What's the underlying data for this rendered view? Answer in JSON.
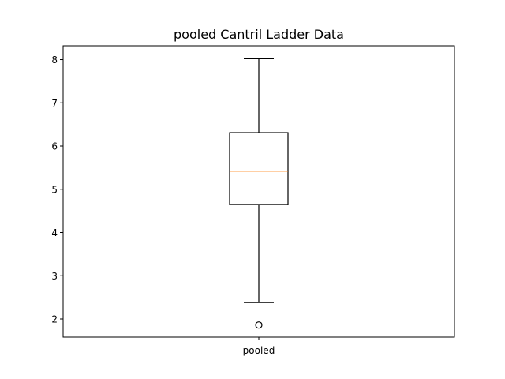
{
  "chart_data": {
    "type": "box",
    "title": "pooled Cantril Ladder Data",
    "xlabel": "",
    "ylabel": "",
    "categories": [
      "pooled"
    ],
    "ylim": [
      1.58,
      8.32
    ],
    "yticks": [
      2,
      3,
      4,
      5,
      6,
      7,
      8
    ],
    "grid": false,
    "boxes": [
      {
        "label": "pooled",
        "whisker_low": 2.38,
        "q1": 4.65,
        "median": 5.42,
        "q3": 6.31,
        "whisker_high": 8.02,
        "outliers": [
          1.86
        ]
      }
    ],
    "colors": {
      "box": "#000000",
      "median": "#ff7f0e",
      "axes": "#000000"
    }
  }
}
